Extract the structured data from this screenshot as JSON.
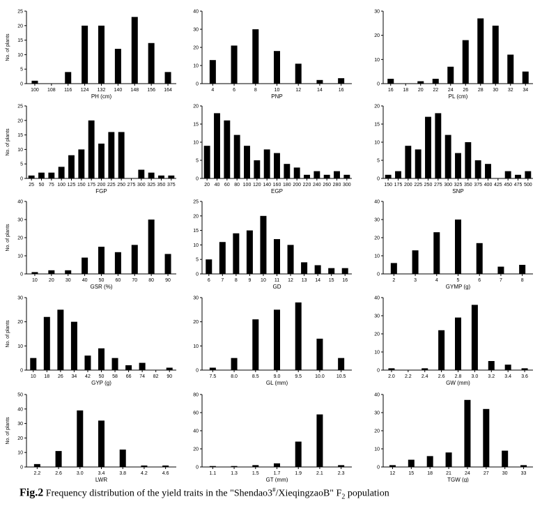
{
  "caption": {
    "label": "Fig.2",
    "text_before": " Frequency distribution of the yield traits in the \"Shendao3",
    "superscript": "#",
    "text_middle": "/XieqingzaoB\" F",
    "subscript": "2",
    "text_after": " population"
  },
  "chart_data": [
    {
      "id": "PH",
      "type": "bar",
      "xlabel": "PH (cm)",
      "ylabel": "No. of plants",
      "ylim": [
        0,
        25
      ],
      "yticks": [
        0,
        5,
        10,
        15,
        20,
        25
      ],
      "categories": [
        "100",
        "108",
        "116",
        "124",
        "132",
        "140",
        "148",
        "156",
        "164"
      ],
      "values": [
        1,
        0,
        4,
        20,
        20,
        12,
        23,
        14,
        4
      ]
    },
    {
      "id": "PNP",
      "type": "bar",
      "xlabel": "PNP",
      "ylabel": "",
      "ylim": [
        0,
        40
      ],
      "yticks": [
        0,
        10,
        20,
        30,
        40
      ],
      "categories": [
        "4",
        "6",
        "8",
        "10",
        "12",
        "14",
        "16"
      ],
      "values": [
        13,
        21,
        30,
        18,
        11,
        2,
        3
      ]
    },
    {
      "id": "PL",
      "type": "bar",
      "xlabel": "PL (cm)",
      "ylabel": "",
      "ylim": [
        0,
        30
      ],
      "yticks": [
        0,
        10,
        20,
        30
      ],
      "categories": [
        "16",
        "18",
        "20",
        "22",
        "24",
        "26",
        "28",
        "30",
        "32",
        "34"
      ],
      "values": [
        2,
        0,
        1,
        2,
        7,
        18,
        27,
        24,
        12,
        5
      ]
    },
    {
      "id": "FGP",
      "type": "bar",
      "xlabel": "FGP",
      "ylabel": "No. of plants",
      "ylim": [
        0,
        25
      ],
      "yticks": [
        0,
        5,
        10,
        15,
        20,
        25
      ],
      "categories": [
        "25",
        "50",
        "75",
        "100",
        "125",
        "150",
        "175",
        "200",
        "225",
        "250",
        "275",
        "300",
        "325",
        "350",
        "375"
      ],
      "values": [
        1,
        2,
        2,
        4,
        8,
        10,
        20,
        12,
        16,
        16,
        0,
        3,
        2,
        1,
        1
      ]
    },
    {
      "id": "EGP",
      "type": "bar",
      "xlabel": "EGP",
      "ylabel": "",
      "ylim": [
        0,
        20
      ],
      "yticks": [
        0,
        5,
        10,
        15,
        20
      ],
      "categories": [
        "20",
        "40",
        "60",
        "80",
        "100",
        "120",
        "140",
        "160",
        "180",
        "200",
        "220",
        "240",
        "260",
        "280",
        "300"
      ],
      "values": [
        9,
        18,
        16,
        12,
        9,
        5,
        8,
        7,
        4,
        3,
        1,
        2,
        1,
        2,
        1
      ]
    },
    {
      "id": "SNP",
      "type": "bar",
      "xlabel": "SNP",
      "ylabel": "",
      "ylim": [
        0,
        20
      ],
      "yticks": [
        0,
        5,
        10,
        15,
        20
      ],
      "categories": [
        "150",
        "175",
        "200",
        "225",
        "250",
        "275",
        "300",
        "325",
        "350",
        "375",
        "400",
        "425",
        "450",
        "475",
        "500"
      ],
      "values": [
        1,
        2,
        9,
        8,
        17,
        18,
        12,
        7,
        10,
        5,
        4,
        0,
        2,
        1,
        2
      ]
    },
    {
      "id": "GSR",
      "type": "bar",
      "xlabel": "GSR (%)",
      "ylabel": "No. of plants",
      "ylim": [
        0,
        40
      ],
      "yticks": [
        0,
        10,
        20,
        30,
        40
      ],
      "categories": [
        "10",
        "20",
        "30",
        "40",
        "50",
        "60",
        "70",
        "80",
        "90"
      ],
      "values": [
        1,
        2,
        2,
        9,
        15,
        12,
        16,
        30,
        11
      ]
    },
    {
      "id": "GD",
      "type": "bar",
      "xlabel": "GD",
      "ylabel": "",
      "ylim": [
        0,
        25
      ],
      "yticks": [
        0,
        5,
        10,
        15,
        20,
        25
      ],
      "categories": [
        "6",
        "7",
        "8",
        "9",
        "10",
        "11",
        "12",
        "13",
        "14",
        "15",
        "16"
      ],
      "values": [
        5,
        11,
        14,
        15,
        20,
        12,
        10,
        4,
        3,
        2,
        2
      ]
    },
    {
      "id": "GYMP",
      "type": "bar",
      "xlabel": "GYMP (g)",
      "ylabel": "",
      "ylim": [
        0,
        40
      ],
      "yticks": [
        0,
        10,
        20,
        30,
        40
      ],
      "categories": [
        "2",
        "3",
        "4",
        "5",
        "6",
        "7",
        "8"
      ],
      "values": [
        6,
        13,
        23,
        30,
        17,
        4,
        5
      ]
    },
    {
      "id": "GYP",
      "type": "bar",
      "xlabel": "GYP (g)",
      "ylabel": "No. of plants",
      "ylim": [
        0,
        30
      ],
      "yticks": [
        0,
        10,
        20,
        30
      ],
      "categories": [
        "10",
        "18",
        "26",
        "34",
        "42",
        "50",
        "58",
        "66",
        "74",
        "82",
        "90"
      ],
      "values": [
        5,
        22,
        25,
        20,
        6,
        9,
        5,
        2,
        3,
        0,
        1
      ]
    },
    {
      "id": "GL",
      "type": "bar",
      "xlabel": "GL (mm)",
      "ylabel": "",
      "ylim": [
        0,
        30
      ],
      "yticks": [
        0,
        10,
        20,
        30
      ],
      "categories": [
        "7.5",
        "8.0",
        "8.5",
        "9.0",
        "9.5",
        "10.0",
        "10.5"
      ],
      "values": [
        1,
        5,
        21,
        25,
        28,
        13,
        5
      ]
    },
    {
      "id": "GW",
      "type": "bar",
      "xlabel": "GW (mm)",
      "ylabel": "",
      "ylim": [
        0,
        40
      ],
      "yticks": [
        0,
        10,
        20,
        30,
        40
      ],
      "categories": [
        "2.0",
        "2.2",
        "2.4",
        "2.6",
        "2.8",
        "3.0",
        "3.2",
        "3.4",
        "3.6"
      ],
      "values": [
        1,
        0,
        1,
        22,
        29,
        36,
        5,
        3,
        1
      ]
    },
    {
      "id": "LWR",
      "type": "bar",
      "xlabel": "LWR",
      "ylabel": "No. of plants",
      "ylim": [
        0,
        50
      ],
      "yticks": [
        0,
        10,
        20,
        30,
        40,
        50
      ],
      "categories": [
        "2.2",
        "2.6",
        "3.0",
        "3.4",
        "3.8",
        "4.2",
        "4.6"
      ],
      "values": [
        2,
        11,
        39,
        32,
        12,
        1,
        1
      ]
    },
    {
      "id": "GT",
      "type": "bar",
      "xlabel": "GT (mm)",
      "ylabel": "",
      "ylim": [
        0,
        80
      ],
      "yticks": [
        0,
        20,
        40,
        60,
        80
      ],
      "categories": [
        "1.1",
        "1.3",
        "1.5",
        "1.7",
        "1.9",
        "2.1",
        "2.3"
      ],
      "values": [
        1,
        1,
        2,
        4,
        28,
        58,
        2
      ]
    },
    {
      "id": "TGW",
      "type": "bar",
      "xlabel": "TGW (g)",
      "ylabel": "",
      "ylim": [
        0,
        40
      ],
      "yticks": [
        0,
        10,
        20,
        30,
        40
      ],
      "categories": [
        "12",
        "15",
        "18",
        "21",
        "24",
        "27",
        "30",
        "33"
      ],
      "values": [
        1,
        4,
        6,
        8,
        37,
        32,
        9,
        1
      ]
    }
  ]
}
